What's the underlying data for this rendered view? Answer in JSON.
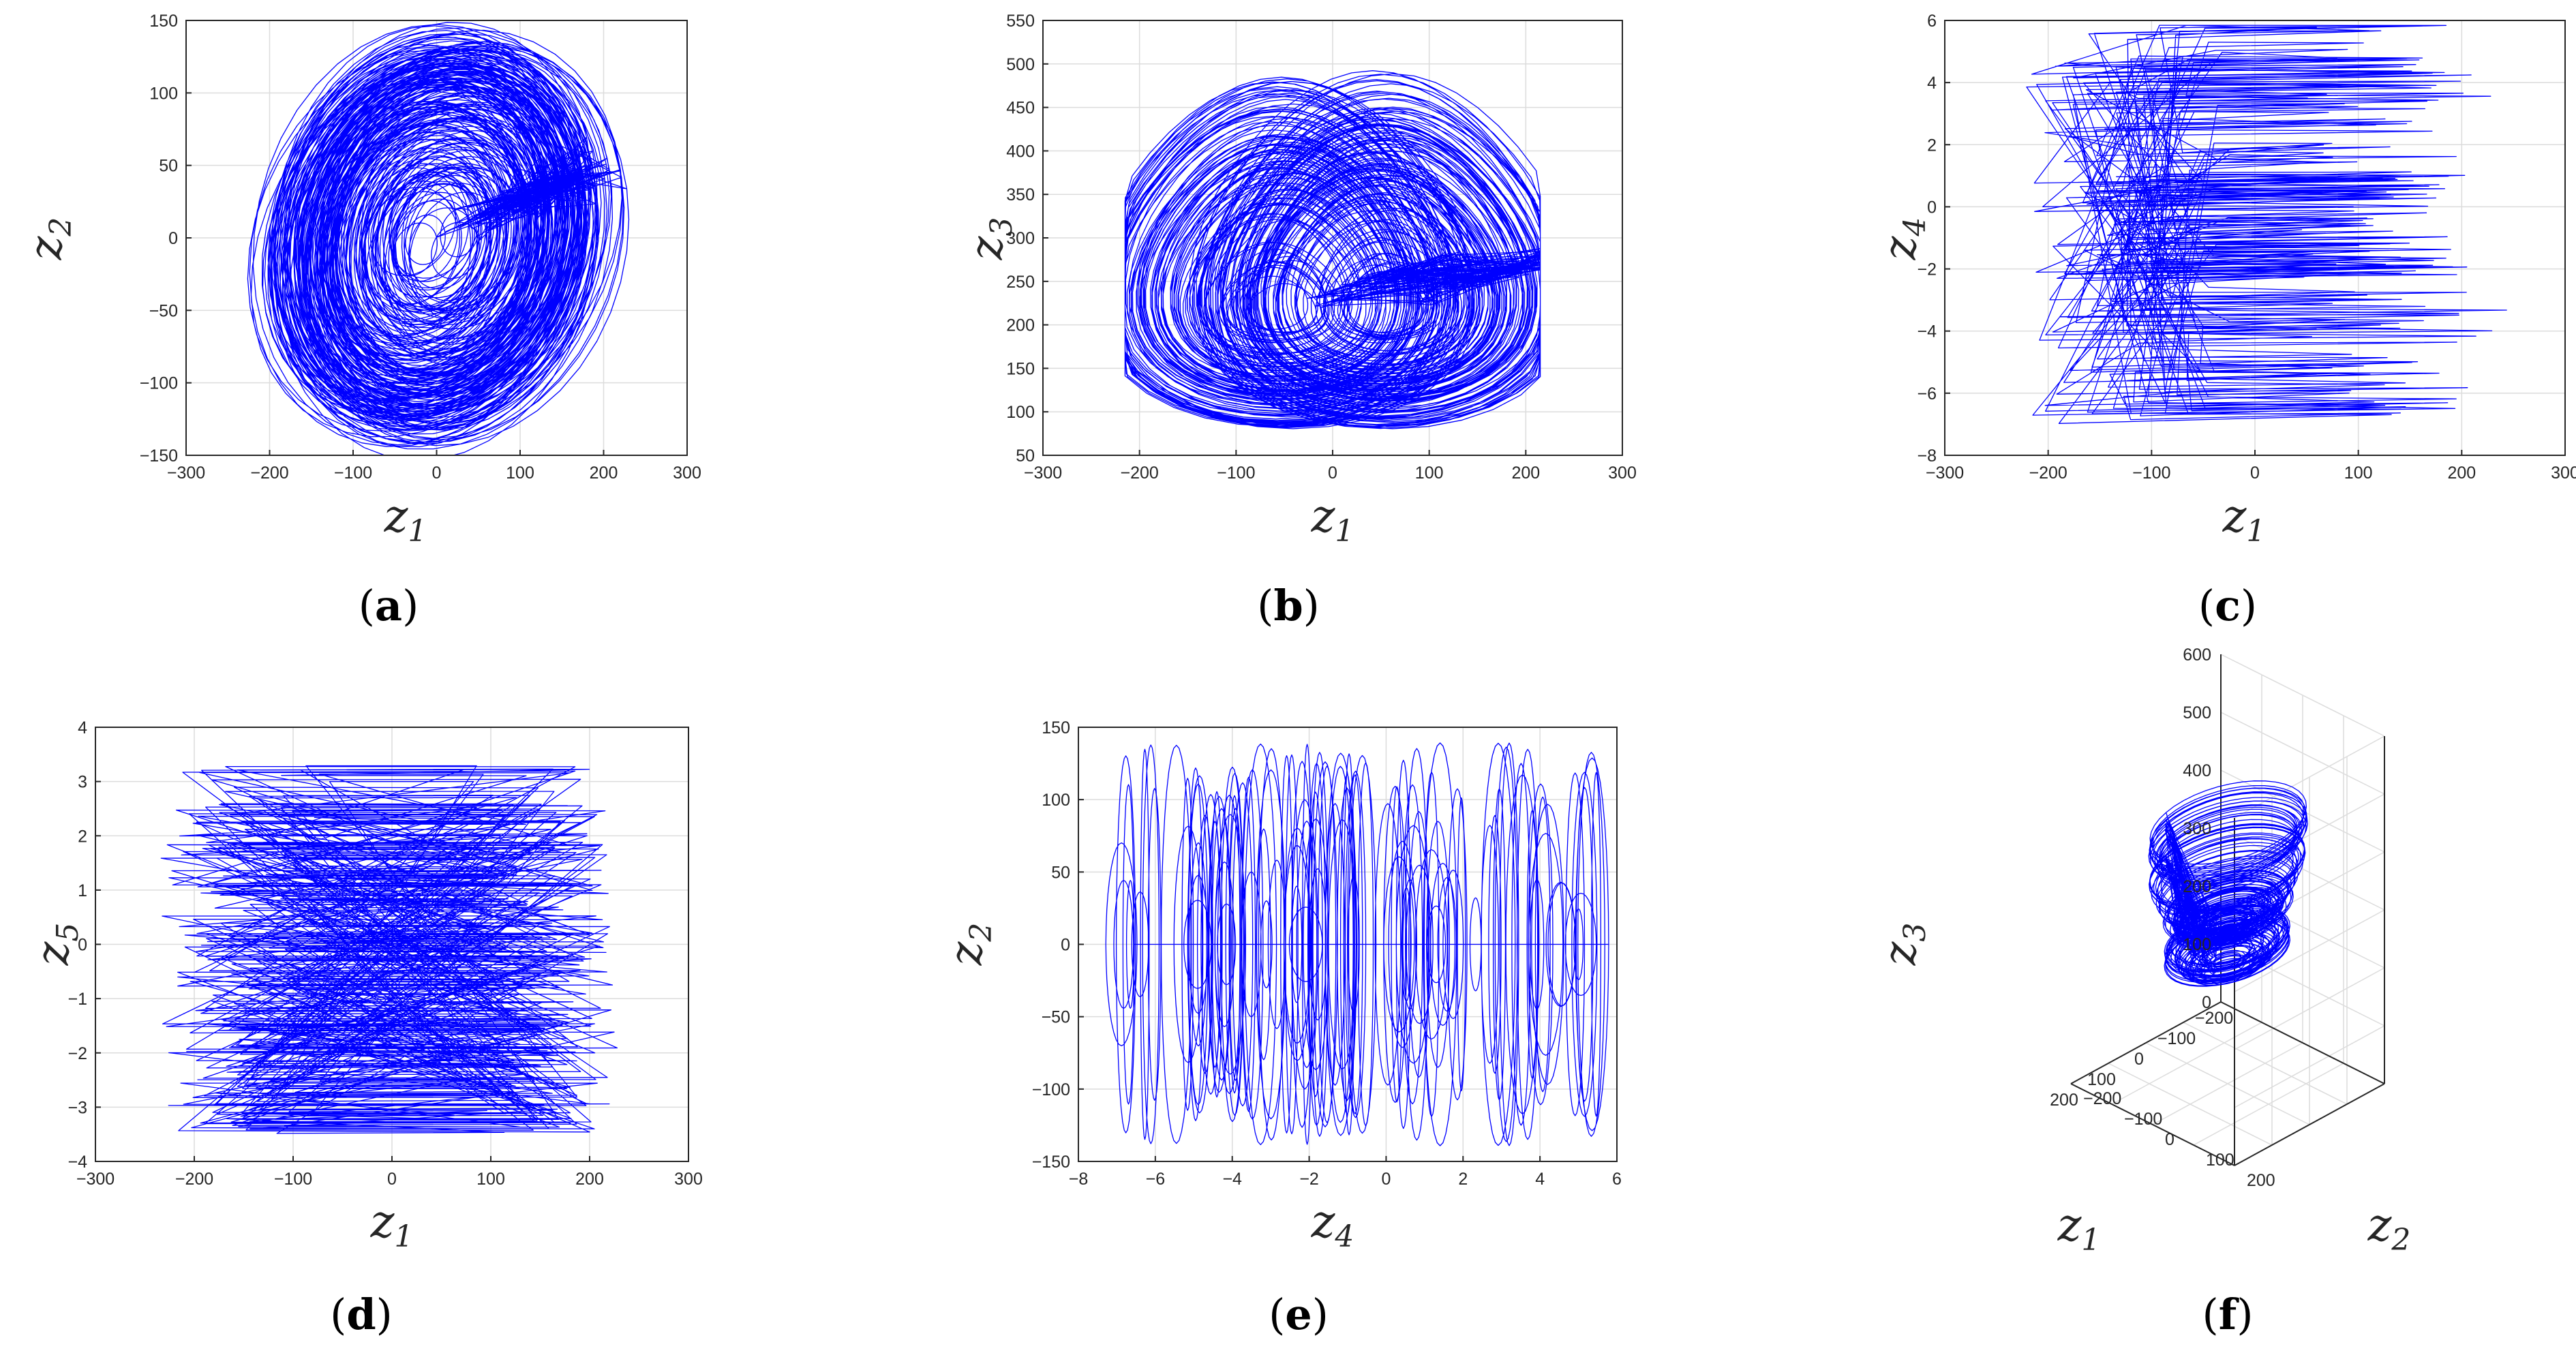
{
  "chart_data": [
    {
      "panel": "a",
      "type": "line",
      "caption": "a",
      "xlabel": {
        "main": "z",
        "sub": "1"
      },
      "ylabel": {
        "main": "z",
        "sub": "2"
      },
      "xlim": [
        -300,
        300
      ],
      "ylim": [
        -150,
        150
      ],
      "xticks": [
        -300,
        -200,
        -100,
        0,
        100,
        200,
        300
      ],
      "yticks": [
        -150,
        -100,
        -50,
        0,
        50,
        100,
        150
      ],
      "grid": true,
      "trace_color": "#0000ff",
      "series_extent": {
        "x": [
          -220,
          225
        ],
        "y": [
          -140,
          140
        ]
      }
    },
    {
      "panel": "b",
      "type": "line",
      "caption": "b",
      "xlabel": {
        "main": "z",
        "sub": "1"
      },
      "ylabel": {
        "main": "z",
        "sub": "3"
      },
      "xlim": [
        -300,
        300
      ],
      "ylim": [
        50,
        550
      ],
      "xticks": [
        -300,
        -200,
        -100,
        0,
        100,
        200,
        300
      ],
      "yticks": [
        50,
        100,
        150,
        200,
        250,
        300,
        350,
        400,
        450,
        500,
        550
      ],
      "grid": true,
      "trace_color": "#0000ff",
      "series_extent": {
        "x": [
          -215,
          215
        ],
        "y": [
          60,
          525
        ]
      }
    },
    {
      "panel": "c",
      "type": "line",
      "caption": "c",
      "xlabel": {
        "main": "z",
        "sub": "1"
      },
      "ylabel": {
        "main": "z",
        "sub": "4"
      },
      "xlim": [
        -300,
        300
      ],
      "ylim": [
        -8,
        6
      ],
      "xticks": [
        -300,
        -200,
        -100,
        0,
        100,
        200,
        300
      ],
      "yticks": [
        -8,
        -6,
        -4,
        -2,
        0,
        2,
        4,
        6
      ],
      "grid": true,
      "trace_color": "#0000ff",
      "series_extent": {
        "x": [
          -220,
          220
        ],
        "y": [
          -7.2,
          5.8
        ]
      }
    },
    {
      "panel": "d",
      "type": "line",
      "caption": "d",
      "xlabel": {
        "main": "z",
        "sub": "1"
      },
      "ylabel": {
        "main": "z",
        "sub": "5"
      },
      "xlim": [
        -300,
        300
      ],
      "ylim": [
        -4,
        4
      ],
      "xticks": [
        -300,
        -200,
        -100,
        0,
        100,
        200,
        300
      ],
      "yticks": [
        -4,
        -3,
        -2,
        -1,
        0,
        1,
        2,
        3,
        4
      ],
      "grid": true,
      "trace_color": "#0000ff",
      "series_extent": {
        "x": [
          -220,
          225
        ],
        "y": [
          -3.5,
          3.3
        ]
      }
    },
    {
      "panel": "e",
      "type": "line",
      "caption": "e",
      "xlabel": {
        "main": "z",
        "sub": "4"
      },
      "ylabel": {
        "main": "z",
        "sub": "2"
      },
      "xlim": [
        -8,
        6
      ],
      "ylim": [
        -150,
        150
      ],
      "xticks": [
        -8,
        -6,
        -4,
        -2,
        0,
        2,
        4,
        6
      ],
      "yticks": [
        -150,
        -100,
        -50,
        0,
        50,
        100,
        150
      ],
      "grid": true,
      "trace_color": "#0000ff",
      "series_extent": {
        "x": [
          -7.2,
          5.8
        ],
        "y": [
          -140,
          140
        ]
      }
    },
    {
      "panel": "f",
      "type": "line3d",
      "caption": "f",
      "xlabel": {
        "main": "z",
        "sub": "1"
      },
      "ylabel": {
        "main": "z",
        "sub": "2"
      },
      "zlabel": {
        "main": "z",
        "sub": "3"
      },
      "xticks": [
        -200,
        -100,
        0,
        100,
        200
      ],
      "yticks": [
        -200,
        -100,
        0,
        100,
        200
      ],
      "zticks": [
        0,
        100,
        200,
        300,
        400,
        500,
        600
      ],
      "xlim": [
        -200,
        200
      ],
      "ylim": [
        -200,
        200
      ],
      "zlim": [
        0,
        600
      ],
      "grid": true,
      "trace_color": "#0000ff"
    }
  ]
}
